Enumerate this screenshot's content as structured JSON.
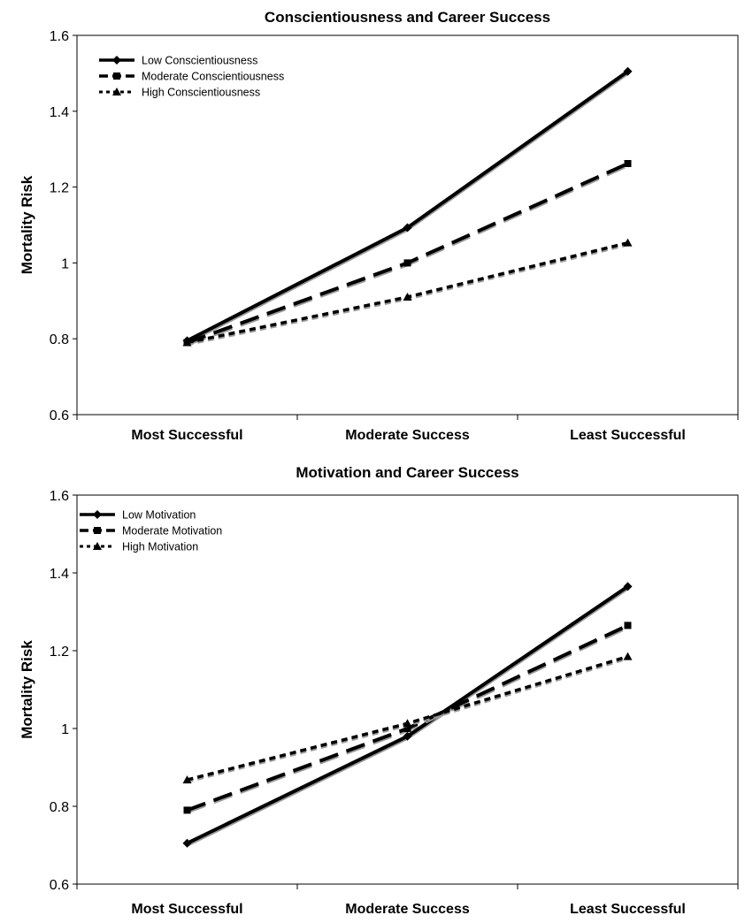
{
  "chart_data": [
    {
      "type": "line",
      "title": "Conscientiousness and Career Success",
      "xlabel": "",
      "ylabel": "Mortality Risk",
      "categories": [
        "Most Successful",
        "Moderate Success",
        "Least Successful"
      ],
      "ylim": [
        0.6,
        1.6
      ],
      "yticks": [
        "0.6",
        "0.8",
        "1",
        "1.2",
        "1.4",
        "1.6"
      ],
      "grid": false,
      "legend_position": "top-left",
      "series": [
        {
          "name": "Low Conscientiousness",
          "values": [
            0.795,
            1.093,
            1.505
          ],
          "style": "solid",
          "marker": "diamond"
        },
        {
          "name": "Moderate Conscientiousness",
          "values": [
            0.79,
            1.0,
            1.262
          ],
          "style": "long-dash",
          "marker": "square"
        },
        {
          "name": "High Conscientiousness",
          "values": [
            0.79,
            0.91,
            1.053
          ],
          "style": "short-dash",
          "marker": "triangle"
        }
      ]
    },
    {
      "type": "line",
      "title": "Motivation and Career Success",
      "xlabel": "",
      "ylabel": "Mortality Risk",
      "categories": [
        "Most Successful",
        "Moderate Success",
        "Least Successful"
      ],
      "ylim": [
        0.6,
        1.6
      ],
      "yticks": [
        "0.6",
        "0.8",
        "1",
        "1.2",
        "1.4",
        "1.6"
      ],
      "grid": false,
      "legend_position": "top-left",
      "series": [
        {
          "name": "Low Motivation",
          "values": [
            0.705,
            0.98,
            1.365
          ],
          "style": "solid",
          "marker": "diamond"
        },
        {
          "name": "Moderate Motivation",
          "values": [
            0.79,
            1.0,
            1.265
          ],
          "style": "long-dash",
          "marker": "square"
        },
        {
          "name": "High Motivation",
          "values": [
            0.868,
            1.013,
            1.185
          ],
          "style": "short-dash",
          "marker": "triangle"
        }
      ]
    }
  ]
}
